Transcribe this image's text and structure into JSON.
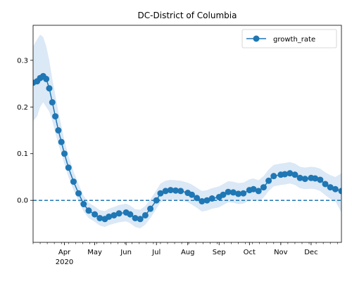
{
  "chart_data": {
    "type": "line",
    "title": "DC-District of Columbia",
    "xlabel": "",
    "ylabel": "",
    "x_range": [
      "2020-03-01",
      "2020-12-31"
    ],
    "ylim": [
      -0.09,
      0.375
    ],
    "y_ticks": [
      0.0,
      0.1,
      0.2,
      0.3
    ],
    "y_tick_labels": [
      "0.0",
      "0.1",
      "0.2",
      "0.3"
    ],
    "x_ticks": [
      {
        "date": "2020-04-01",
        "label": "Apr"
      },
      {
        "date": "2020-05-01",
        "label": "May"
      },
      {
        "date": "2020-06-01",
        "label": "Jun"
      },
      {
        "date": "2020-07-01",
        "label": "Jul"
      },
      {
        "date": "2020-08-01",
        "label": "Aug"
      },
      {
        "date": "2020-09-01",
        "label": "Sep"
      },
      {
        "date": "2020-10-01",
        "label": "Oct"
      },
      {
        "date": "2020-11-01",
        "label": "Nov"
      },
      {
        "date": "2020-12-01",
        "label": "Dec"
      }
    ],
    "year_label": "2020",
    "reference_line": {
      "y": 0.0,
      "style": "dashed",
      "color": "#1f77b4"
    },
    "grid": false,
    "legend": {
      "position": "top-right",
      "entries": [
        "growth_rate"
      ]
    },
    "series": [
      {
        "name": "growth_rate",
        "color": "#1f77b4",
        "band_color": "#dbe8f6",
        "marker": "circle",
        "x": [
          "2020-03-01",
          "2020-03-05",
          "2020-03-08",
          "2020-03-11",
          "2020-03-14",
          "2020-03-17",
          "2020-03-20",
          "2020-03-23",
          "2020-03-26",
          "2020-03-29",
          "2020-04-01",
          "2020-04-05",
          "2020-04-10",
          "2020-04-15",
          "2020-04-20",
          "2020-04-25",
          "2020-05-01",
          "2020-05-06",
          "2020-05-11",
          "2020-05-15",
          "2020-05-20",
          "2020-05-25",
          "2020-06-01",
          "2020-06-05",
          "2020-06-10",
          "2020-06-15",
          "2020-06-20",
          "2020-06-25",
          "2020-07-01",
          "2020-07-05",
          "2020-07-10",
          "2020-07-15",
          "2020-07-20",
          "2020-07-25",
          "2020-08-01",
          "2020-08-05",
          "2020-08-10",
          "2020-08-15",
          "2020-08-20",
          "2020-08-25",
          "2020-09-01",
          "2020-09-05",
          "2020-09-10",
          "2020-09-15",
          "2020-09-20",
          "2020-09-25",
          "2020-10-01",
          "2020-10-05",
          "2020-10-10",
          "2020-10-15",
          "2020-10-20",
          "2020-10-25",
          "2020-11-01",
          "2020-11-05",
          "2020-11-10",
          "2020-11-15",
          "2020-11-20",
          "2020-11-25",
          "2020-12-01",
          "2020-12-05",
          "2020-12-10",
          "2020-12-15",
          "2020-12-20",
          "2020-12-25",
          "2020-12-31"
        ],
        "values": [
          0.252,
          0.255,
          0.262,
          0.266,
          0.26,
          0.24,
          0.21,
          0.18,
          0.15,
          0.125,
          0.1,
          0.07,
          0.04,
          0.015,
          -0.008,
          -0.022,
          -0.03,
          -0.038,
          -0.04,
          -0.035,
          -0.032,
          -0.028,
          -0.026,
          -0.03,
          -0.038,
          -0.04,
          -0.032,
          -0.018,
          0.0,
          0.015,
          0.02,
          0.022,
          0.021,
          0.02,
          0.016,
          0.012,
          0.005,
          -0.002,
          0.0,
          0.004,
          0.007,
          0.012,
          0.018,
          0.017,
          0.014,
          0.015,
          0.022,
          0.024,
          0.02,
          0.028,
          0.042,
          0.052,
          0.055,
          0.056,
          0.058,
          0.055,
          0.048,
          0.046,
          0.048,
          0.047,
          0.044,
          0.035,
          0.028,
          0.024,
          0.02
        ],
        "lower": [
          0.17,
          0.18,
          0.2,
          0.21,
          0.2,
          0.19,
          0.17,
          0.145,
          0.12,
          0.1,
          0.078,
          0.05,
          0.022,
          -0.002,
          -0.024,
          -0.038,
          -0.046,
          -0.054,
          -0.057,
          -0.053,
          -0.05,
          -0.047,
          -0.045,
          -0.049,
          -0.057,
          -0.06,
          -0.052,
          -0.038,
          -0.018,
          -0.004,
          0.0,
          0.002,
          0.001,
          0.0,
          -0.004,
          -0.009,
          -0.016,
          -0.024,
          -0.022,
          -0.018,
          -0.015,
          -0.01,
          -0.004,
          -0.005,
          -0.008,
          -0.007,
          0.0,
          0.002,
          -0.002,
          0.006,
          0.02,
          0.03,
          0.033,
          0.034,
          0.036,
          0.033,
          0.026,
          0.024,
          0.025,
          0.024,
          0.02,
          0.011,
          0.003,
          -0.002,
          -0.026
        ],
        "upper": [
          0.33,
          0.345,
          0.355,
          0.35,
          0.33,
          0.3,
          0.26,
          0.225,
          0.19,
          0.16,
          0.128,
          0.095,
          0.062,
          0.035,
          0.01,
          -0.005,
          -0.013,
          -0.021,
          -0.023,
          -0.018,
          -0.014,
          -0.01,
          -0.007,
          -0.011,
          -0.019,
          -0.02,
          -0.012,
          0.002,
          0.022,
          0.036,
          0.042,
          0.044,
          0.043,
          0.042,
          0.038,
          0.034,
          0.027,
          0.02,
          0.022,
          0.026,
          0.03,
          0.035,
          0.041,
          0.04,
          0.037,
          0.038,
          0.045,
          0.047,
          0.043,
          0.052,
          0.066,
          0.076,
          0.079,
          0.08,
          0.082,
          0.079,
          0.072,
          0.07,
          0.072,
          0.071,
          0.068,
          0.06,
          0.054,
          0.05,
          0.058
        ]
      }
    ]
  }
}
